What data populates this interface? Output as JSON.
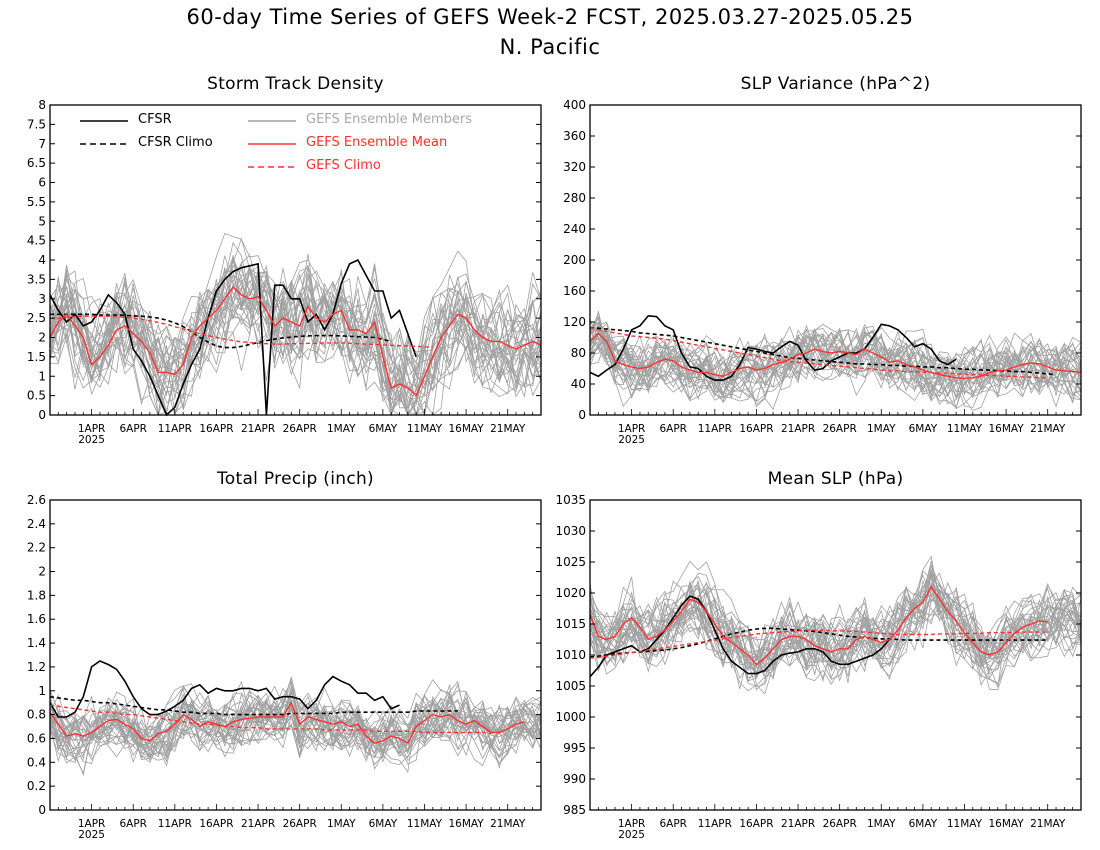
{
  "figure": {
    "title_line1": "60-day Time Series of GEFS Week-2 FCST, 2025.03.27-2025.05.25",
    "title_line2": "N. Pacific",
    "colors": {
      "cfsr": "#000000",
      "members": "#a0a0a0",
      "gefs": "#ff3030"
    }
  },
  "legend": {
    "cfsr": "CFSR",
    "cfsr_climo": "CFSR Climo",
    "members": "GEFS Ensemble Members",
    "gefs_mean": "GEFS Ensemble Mean",
    "gefs_climo": "GEFS Climo"
  },
  "chart_data": [
    {
      "type": "line",
      "title": "Storm Track Density",
      "x_ticks": [
        "1APR\n2025",
        "6APR",
        "11APR",
        "16APR",
        "21APR",
        "26APR",
        "1MAY",
        "6MAY",
        "11MAY",
        "16MAY",
        "21MAY"
      ],
      "y_ticks": [
        "0",
        "0.5",
        "1",
        "1.5",
        "2",
        "2.5",
        "3",
        "3.5",
        "4",
        "4.5",
        "5",
        "5.5",
        "6",
        "6.5",
        "7",
        "7.5",
        "8"
      ],
      "ylim": [
        0,
        8
      ],
      "x": "days 1-60 from 2025-03-27",
      "series": [
        {
          "name": "CFSR",
          "values": [
            3.1,
            2.7,
            2.4,
            2.6,
            2.3,
            2.4,
            2.7,
            3.1,
            2.9,
            2.6,
            1.7,
            1.4,
            1.0,
            0.5,
            0.0,
            0.2,
            0.8,
            1.3,
            1.7,
            2.5,
            3.2,
            3.5,
            3.7,
            3.8,
            3.85,
            3.9,
            0.0,
            3.35,
            3.35,
            3.0,
            3.0,
            2.4,
            2.6,
            2.2,
            2.6,
            3.4,
            3.9,
            4.0,
            3.6,
            3.2,
            3.2,
            2.5,
            2.7,
            2.1,
            1.5
          ]
        },
        {
          "name": "CFSR Climo",
          "values": [
            2.6,
            2.6,
            2.6,
            2.6,
            2.6,
            2.6,
            2.58,
            2.58,
            2.58,
            2.57,
            2.56,
            2.55,
            2.53,
            2.5,
            2.45,
            2.38,
            2.28,
            2.15,
            2.0,
            1.88,
            1.78,
            1.74,
            1.74,
            1.77,
            1.82,
            1.87,
            1.92,
            1.96,
            1.99,
            2.01,
            2.03,
            2.04,
            2.05,
            2.05,
            2.05,
            2.04,
            2.03,
            2.02,
            2.01,
            2.0,
            1.95,
            1.9
          ]
        },
        {
          "name": "GEFS Ensemble Mean",
          "values": [
            2.0,
            2.4,
            2.6,
            2.3,
            2.0,
            1.3,
            1.5,
            1.8,
            2.2,
            2.3,
            2.1,
            1.9,
            1.6,
            1.1,
            1.1,
            1.05,
            1.3,
            2.0,
            2.3,
            2.5,
            2.7,
            3.0,
            3.3,
            3.1,
            3.0,
            3.05,
            2.7,
            2.3,
            2.5,
            2.4,
            2.3,
            2.8,
            2.5,
            2.4,
            2.6,
            2.7,
            2.2,
            2.2,
            2.1,
            2.4,
            1.5,
            0.7,
            0.8,
            0.7,
            0.5,
            1.0,
            1.5,
            2.0,
            2.3,
            2.6,
            2.5,
            2.2,
            2.0,
            1.9,
            1.9,
            1.8,
            1.7,
            1.8,
            1.9,
            1.8
          ]
        },
        {
          "name": "GEFS Climo",
          "values": [
            2.5,
            2.5,
            2.52,
            2.54,
            2.55,
            2.55,
            2.55,
            2.55,
            2.54,
            2.52,
            2.5,
            2.47,
            2.43,
            2.39,
            2.34,
            2.28,
            2.22,
            2.16,
            2.1,
            2.05,
            2.0,
            1.96,
            1.92,
            1.89,
            1.87,
            1.85,
            1.84,
            1.83,
            1.83,
            1.84,
            1.84,
            1.85,
            1.85,
            1.86,
            1.86,
            1.86,
            1.85,
            1.84,
            1.83,
            1.82,
            1.81,
            1.8,
            1.79,
            1.78,
            1.77,
            1.76,
            1.75
          ]
        }
      ]
    },
    {
      "type": "line",
      "title": "SLP Variance (hPa^2)",
      "x_ticks": [
        "1APR\n2025",
        "6APR",
        "11APR",
        "16APR",
        "21APR",
        "26APR",
        "1MAY",
        "6MAY",
        "11MAY",
        "16MAY",
        "21MAY"
      ],
      "y_ticks": [
        "0",
        "40",
        "80",
        "120",
        "160",
        "200",
        "240",
        "280",
        "320",
        "360",
        "400"
      ],
      "ylim": [
        0,
        400
      ],
      "series": [
        {
          "name": "CFSR",
          "values": [
            55,
            50,
            58,
            65,
            85,
            110,
            115,
            128,
            127,
            115,
            110,
            80,
            62,
            60,
            50,
            45,
            45,
            50,
            65,
            87,
            85,
            82,
            80,
            88,
            95,
            90,
            70,
            58,
            60,
            70,
            75,
            80,
            80,
            85,
            100,
            117,
            115,
            110,
            100,
            88,
            92,
            85,
            70,
            65,
            72
          ]
        },
        {
          "name": "CFSR Climo",
          "values": [
            112,
            112,
            111,
            110,
            109,
            108,
            106,
            105,
            104,
            103,
            102,
            100,
            98,
            96,
            94,
            92,
            90,
            88,
            86,
            84,
            82,
            80,
            78,
            76,
            74,
            73,
            72,
            71,
            70,
            69,
            68,
            67,
            66,
            66,
            65,
            65,
            64,
            64,
            63,
            63,
            62,
            62,
            61,
            61,
            60,
            59,
            59,
            58,
            58,
            57,
            57,
            56,
            56,
            55,
            54,
            53,
            52
          ]
        },
        {
          "name": "GEFS Ensemble Mean",
          "values": [
            95,
            105,
            95,
            70,
            65,
            62,
            60,
            62,
            68,
            72,
            70,
            62,
            58,
            55,
            55,
            52,
            50,
            55,
            60,
            62,
            58,
            60,
            65,
            68,
            72,
            78,
            80,
            85,
            82,
            80,
            82,
            80,
            78,
            85,
            80,
            75,
            68,
            70,
            65,
            62,
            58,
            55,
            52,
            50,
            48,
            47,
            48,
            50,
            55,
            57,
            58,
            62,
            65,
            67,
            66,
            62,
            58,
            57,
            56,
            55
          ]
        },
        {
          "name": "GEFS Climo",
          "values": [
            112,
            110,
            108,
            106,
            104,
            102,
            101,
            100,
            99,
            98,
            96,
            94,
            92,
            90,
            88,
            86,
            84,
            82,
            80,
            78,
            76,
            74,
            72,
            70,
            69,
            68,
            67,
            66,
            65,
            64,
            63,
            62,
            61,
            60,
            59,
            58,
            57,
            57,
            56,
            56,
            55,
            55,
            54,
            54,
            53,
            53,
            52,
            52,
            51,
            51,
            50,
            50,
            49,
            49,
            48,
            48
          ]
        }
      ]
    },
    {
      "type": "line",
      "title": "Total Precip (inch)",
      "x_ticks": [
        "1APR\n2025",
        "6APR",
        "11APR",
        "16APR",
        "21APR",
        "26APR",
        "1MAY",
        "6MAY",
        "11MAY",
        "16MAY",
        "21MAY"
      ],
      "y_ticks": [
        "0",
        "0.2",
        "0.4",
        "0.6",
        "0.8",
        "1",
        "1.2",
        "1.4",
        "1.6",
        "1.8",
        "2",
        "2.2",
        "2.4",
        "2.6"
      ],
      "ylim": [
        0,
        2.6
      ],
      "series": [
        {
          "name": "CFSR",
          "values": [
            0.9,
            0.78,
            0.78,
            0.82,
            0.95,
            1.2,
            1.25,
            1.22,
            1.18,
            1.08,
            0.95,
            0.85,
            0.8,
            0.8,
            0.83,
            0.87,
            0.92,
            1.02,
            1.05,
            0.98,
            1.02,
            1.0,
            1.0,
            1.02,
            1.02,
            1.0,
            1.02,
            0.93,
            0.95,
            0.95,
            0.93,
            0.85,
            0.92,
            1.05,
            1.12,
            1.08,
            1.05,
            0.98,
            0.98,
            0.92,
            0.95,
            0.85,
            0.88
          ]
        },
        {
          "name": "CFSR Climo",
          "values": [
            0.95,
            0.94,
            0.93,
            0.92,
            0.92,
            0.91,
            0.9,
            0.9,
            0.89,
            0.88,
            0.87,
            0.86,
            0.85,
            0.84,
            0.84,
            0.83,
            0.82,
            0.82,
            0.81,
            0.81,
            0.81,
            0.8,
            0.8,
            0.8,
            0.8,
            0.8,
            0.8,
            0.8,
            0.8,
            0.81,
            0.81,
            0.81,
            0.81,
            0.81,
            0.81,
            0.82,
            0.82,
            0.82,
            0.82,
            0.82,
            0.82,
            0.82,
            0.82,
            0.82,
            0.83,
            0.83,
            0.83,
            0.83,
            0.83,
            0.83
          ]
        },
        {
          "name": "GEFS Ensemble Mean",
          "values": [
            0.82,
            0.72,
            0.62,
            0.64,
            0.62,
            0.65,
            0.7,
            0.75,
            0.76,
            0.72,
            0.68,
            0.6,
            0.58,
            0.64,
            0.66,
            0.72,
            0.8,
            0.76,
            0.7,
            0.74,
            0.72,
            0.7,
            0.74,
            0.76,
            0.77,
            0.78,
            0.78,
            0.78,
            0.78,
            0.9,
            0.72,
            0.78,
            0.76,
            0.74,
            0.72,
            0.74,
            0.7,
            0.72,
            0.62,
            0.56,
            0.58,
            0.62,
            0.6,
            0.56,
            0.7,
            0.75,
            0.8,
            0.78,
            0.8,
            0.75,
            0.72,
            0.75,
            0.7,
            0.65,
            0.65,
            0.68,
            0.72,
            0.74
          ]
        },
        {
          "name": "GEFS Climo",
          "values": [
            0.88,
            0.87,
            0.86,
            0.85,
            0.84,
            0.83,
            0.82,
            0.82,
            0.81,
            0.8,
            0.8,
            0.79,
            0.78,
            0.77,
            0.76,
            0.75,
            0.74,
            0.73,
            0.72,
            0.72,
            0.71,
            0.7,
            0.7,
            0.69,
            0.69,
            0.69,
            0.68,
            0.68,
            0.68,
            0.68,
            0.68,
            0.68,
            0.68,
            0.67,
            0.67,
            0.67,
            0.67,
            0.67,
            0.67,
            0.66,
            0.66,
            0.66,
            0.66,
            0.66,
            0.66,
            0.65,
            0.65,
            0.65,
            0.65,
            0.65,
            0.65,
            0.65,
            0.65,
            0.64
          ]
        }
      ]
    },
    {
      "type": "line",
      "title": "Mean SLP (hPa)",
      "x_ticks": [
        "1APR\n2025",
        "6APR",
        "11APR",
        "16APR",
        "21APR",
        "26APR",
        "1MAY",
        "6MAY",
        "11MAY",
        "16MAY",
        "21MAY"
      ],
      "y_ticks": [
        "985",
        "990",
        "995",
        "1000",
        "1005",
        "1010",
        "1015",
        "1020",
        "1025",
        "1030",
        "1035"
      ],
      "ylim": [
        985,
        1035
      ],
      "series": [
        {
          "name": "CFSR",
          "values": [
            1006.5,
            1008,
            1010,
            1010.5,
            1011,
            1011.5,
            1010.5,
            1011,
            1012.5,
            1014,
            1016,
            1018,
            1019.5,
            1019,
            1017,
            1014,
            1011,
            1009,
            1008,
            1007,
            1007,
            1007.5,
            1009,
            1010,
            1010.3,
            1010.5,
            1011,
            1011,
            1010.5,
            1009,
            1008.5,
            1008.5,
            1009,
            1009.5,
            1010,
            1011,
            1012.5
          ]
        },
        {
          "name": "CFSR Climo",
          "values": [
            1009.7,
            1009.8,
            1010,
            1010.2,
            1010.3,
            1010.4,
            1010.5,
            1010.6,
            1010.7,
            1010.8,
            1011,
            1011.2,
            1011.5,
            1011.8,
            1012.2,
            1012.6,
            1013,
            1013.4,
            1013.7,
            1014,
            1014.2,
            1014.3,
            1014.3,
            1014.2,
            1014.1,
            1014,
            1013.9,
            1013.8,
            1013.6,
            1013.4,
            1013.2,
            1013,
            1012.9,
            1012.8,
            1012.7,
            1012.6,
            1012.6,
            1012.5,
            1012.4,
            1012.4,
            1012.4,
            1012.4,
            1012.4,
            1012.4,
            1012.4,
            1012.4,
            1012.4,
            1012.4,
            1012.4,
            1012.4,
            1012.4,
            1012.4,
            1012.4,
            1012.4,
            1012.4,
            1012.4
          ]
        },
        {
          "name": "GEFS Ensemble Mean",
          "values": [
            1016.5,
            1013,
            1012.5,
            1013,
            1015,
            1016,
            1014.5,
            1012.5,
            1013,
            1014,
            1015.5,
            1017,
            1019,
            1018.5,
            1017,
            1015,
            1013,
            1012,
            1011,
            1010,
            1008.5,
            1009.5,
            1011,
            1012.5,
            1013,
            1013,
            1012.5,
            1011.5,
            1011,
            1010.5,
            1011,
            1011,
            1012.5,
            1013,
            1012.5,
            1012,
            1012.5,
            1014,
            1016,
            1017.5,
            1018.5,
            1021,
            1019,
            1017,
            1015.5,
            1013.5,
            1012,
            1010.5,
            1010,
            1010.5,
            1012,
            1013.5,
            1014.5,
            1015,
            1015.5,
            1015.3
          ]
        },
        {
          "name": "GEFS Climo",
          "values": [
            1009.5,
            1009.6,
            1009.8,
            1010,
            1010.2,
            1010.4,
            1010.6,
            1010.8,
            1011,
            1011.2,
            1011.4,
            1011.6,
            1011.8,
            1012,
            1012.2,
            1012.4,
            1012.6,
            1012.8,
            1013,
            1013.2,
            1013.4,
            1013.5,
            1013.6,
            1013.7,
            1013.8,
            1013.9,
            1014,
            1014,
            1014,
            1013.9,
            1013.9,
            1013.8,
            1013.8,
            1013.7,
            1013.6,
            1013.5,
            1013.4,
            1013.3,
            1013.3,
            1013.3,
            1013.3,
            1013.3,
            1013.4,
            1013.4,
            1013.4,
            1013.5,
            1013.5,
            1013.5,
            1013.6,
            1013.6,
            1013.6,
            1013.7,
            1013.7,
            1013.7,
            1013.7,
            1013.7
          ]
        }
      ]
    }
  ]
}
